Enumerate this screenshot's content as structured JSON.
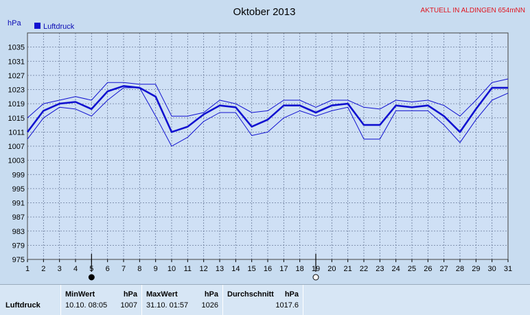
{
  "colors": {
    "series": "#1010d0",
    "grid": "#6a7a9a",
    "plot_bg": "#cfe0f5",
    "outer_bg": "#c8dcf0"
  },
  "header": {
    "station": "AKTUELL IN ALDINGEN 654mNN"
  },
  "chart_data": {
    "type": "line",
    "title": "Oktober 2013",
    "ylabel": "hPa",
    "x": [
      1,
      2,
      3,
      4,
      5,
      6,
      7,
      8,
      9,
      10,
      11,
      12,
      13,
      14,
      15,
      16,
      17,
      18,
      19,
      20,
      21,
      22,
      23,
      24,
      25,
      26,
      27,
      28,
      29,
      30,
      31
    ],
    "x_ticks": [
      "1",
      "2",
      "3",
      "4",
      "5",
      "6",
      "7",
      "8",
      "9",
      "10",
      "11",
      "12",
      "13",
      "14",
      "15",
      "16",
      "17",
      "18",
      "19",
      "20",
      "21",
      "22",
      "23",
      "24",
      "25",
      "26",
      "27",
      "28",
      "29",
      "30",
      "31"
    ],
    "ylim": [
      975,
      1039
    ],
    "y_ticks": [
      "975",
      "979",
      "983",
      "987",
      "991",
      "995",
      "999",
      "1003",
      "1007",
      "1011",
      "1015",
      "1019",
      "1023",
      "1027",
      "1031",
      "1035"
    ],
    "grid": true,
    "legend": "top-left",
    "moon_markers": [
      {
        "day": 5,
        "phase": "new-moon"
      },
      {
        "day": 19,
        "phase": "full-moon"
      }
    ],
    "series": [
      {
        "name": "Luftdruck",
        "role": "mean",
        "values": [
          1011,
          1017,
          1019,
          1019.5,
          1017.5,
          1022.5,
          1024,
          1023.5,
          1021,
          1011,
          1012.5,
          1016,
          1018.5,
          1018,
          1012.5,
          1014.5,
          1018.5,
          1018.5,
          1016.5,
          1018.5,
          1019,
          1013,
          1013,
          1018.5,
          1018,
          1018.5,
          1015.5,
          1011,
          1017.5,
          1023.5,
          1023.5
        ]
      },
      {
        "role": "max",
        "values": [
          1015,
          1019,
          1020,
          1021,
          1020,
          1025,
          1025,
          1024.5,
          1024.5,
          1015.5,
          1015.5,
          1016.5,
          1020,
          1019,
          1016.5,
          1017,
          1020,
          1020,
          1018,
          1020,
          1020,
          1018,
          1017.5,
          1020,
          1019.5,
          1020,
          1018.5,
          1015.5,
          1020,
          1025,
          1026
        ]
      },
      {
        "role": "min",
        "values": [
          1009,
          1015,
          1018,
          1017.5,
          1015.5,
          1020,
          1023.5,
          1023.5,
          1015.5,
          1007,
          1009.5,
          1014,
          1016.5,
          1016.5,
          1010,
          1011,
          1015,
          1017,
          1015.5,
          1017,
          1018,
          1009,
          1009,
          1017,
          1017,
          1017,
          1013,
          1008,
          1014.5,
          1020,
          1022
        ]
      }
    ]
  },
  "table": {
    "row_label": "Luftdruck",
    "min": {
      "header": "MinWert",
      "unit": "hPa",
      "time": "10.10. 08:05",
      "value": "1007"
    },
    "max": {
      "header": "MaxWert",
      "unit": "hPa",
      "time": "31.10. 01:57",
      "value": "1026"
    },
    "avg": {
      "header": "Durchschnitt",
      "unit": "hPa",
      "value": "1017.6"
    }
  }
}
